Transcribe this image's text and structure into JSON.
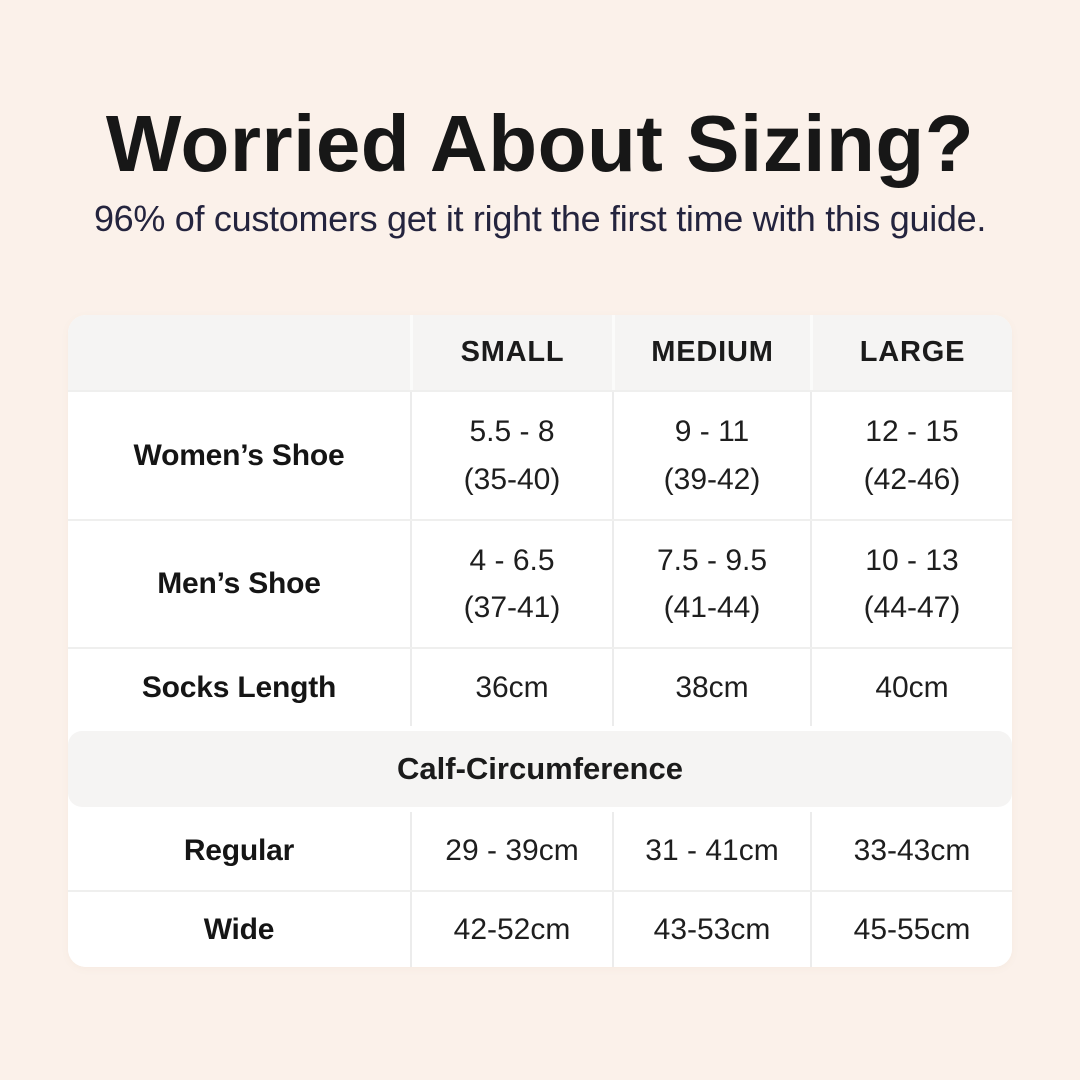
{
  "page": {
    "title": "Worried About Sizing?",
    "subtitle": "96% of customers get it right the first time with this guide."
  },
  "table": {
    "columns": [
      "",
      "SMALL",
      "MEDIUM",
      "LARGE"
    ],
    "shoe_rows": [
      {
        "label": "Women’s Shoe",
        "small": "5.5 - 8\n(35-40)",
        "medium": "9 - 11\n(39-42)",
        "large": "12 - 15\n(42-46)"
      },
      {
        "label": "Men’s Shoe",
        "small": "4 - 6.5\n(37-41)",
        "medium": "7.5 - 9.5\n(41-44)",
        "large": "10 - 13\n(44-47)"
      },
      {
        "label": "Socks Length",
        "small": "36cm",
        "medium": "38cm",
        "large": "40cm"
      }
    ],
    "section_header": "Calf-Circumference",
    "calf_rows": [
      {
        "label": "Regular",
        "small": "29 - 39cm",
        "medium": "31 - 41cm",
        "large": "33-43cm"
      },
      {
        "label": "Wide",
        "small": "42-52cm",
        "medium": "43-53cm",
        "large": "45-55cm"
      }
    ]
  },
  "colors": {
    "background": "#fbf1ea",
    "panel_gray": "#f5f4f3",
    "title_text": "#171717",
    "subtitle_text": "#24243e",
    "divider": "#ececec"
  },
  "chart_data": {
    "type": "table",
    "title": "Worried About Sizing?",
    "subtitle": "96% of customers get it right the first time with this guide.",
    "columns": [
      "",
      "SMALL",
      "MEDIUM",
      "LARGE"
    ],
    "rows": [
      [
        "Women’s Shoe",
        "5.5 - 8 (35-40)",
        "9 - 11 (39-42)",
        "12 - 15 (42-46)"
      ],
      [
        "Men’s Shoe",
        "4 - 6.5 (37-41)",
        "7.5 - 9.5 (41-44)",
        "10 - 13 (44-47)"
      ],
      [
        "Socks Length",
        "36cm",
        "38cm",
        "40cm"
      ],
      [
        "Calf-Circumference",
        "",
        "",
        ""
      ],
      [
        "Regular",
        "29 - 39cm",
        "31 - 41cm",
        "33-43cm"
      ],
      [
        "Wide",
        "42-52cm",
        "43-53cm",
        "45-55cm"
      ]
    ],
    "layout": {
      "section_header_row_index": 3,
      "header_background": "#f5f4f3",
      "body_background": "#ffffff",
      "page_background": "#fbf1ea",
      "grid": "light horizontal and vertical dividers, rounded card corners"
    }
  }
}
